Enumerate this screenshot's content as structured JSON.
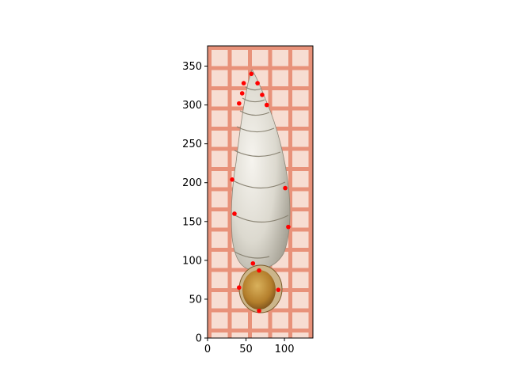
{
  "chart_data": {
    "type": "scatter",
    "title": "",
    "xlabel": "",
    "ylabel": "",
    "xlim": [
      0,
      137
    ],
    "ylim": [
      0,
      376
    ],
    "y_inverted": false,
    "grid": false,
    "background_image": "specimen photo of a slender spiral snail shell on a red millimetre grid",
    "xticks": [
      "0",
      "50",
      "100"
    ],
    "yticks": [
      "0",
      "50",
      "100",
      "150",
      "200",
      "250",
      "300",
      "350"
    ],
    "marker_color": "#ff0000",
    "points": [
      {
        "x": 57,
        "y": 340
      },
      {
        "x": 47,
        "y": 328
      },
      {
        "x": 65,
        "y": 328
      },
      {
        "x": 45,
        "y": 315
      },
      {
        "x": 71,
        "y": 313
      },
      {
        "x": 41,
        "y": 302
      },
      {
        "x": 77,
        "y": 300
      },
      {
        "x": 32,
        "y": 204
      },
      {
        "x": 101,
        "y": 193
      },
      {
        "x": 35,
        "y": 160
      },
      {
        "x": 105,
        "y": 143
      },
      {
        "x": 59,
        "y": 96
      },
      {
        "x": 67,
        "y": 87
      },
      {
        "x": 41,
        "y": 65
      },
      {
        "x": 92,
        "y": 62
      },
      {
        "x": 67,
        "y": 35
      }
    ]
  }
}
